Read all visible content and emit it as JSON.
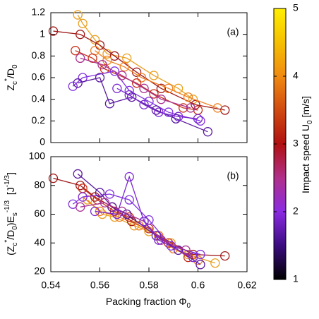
{
  "chart_data": [
    {
      "type": "line",
      "panel_label": "(a)",
      "ylabel": [
        "Z",
        "c",
        "*",
        "/D",
        "0"
      ],
      "xlim": [
        0.54,
        0.62
      ],
      "xticks": [
        0.54,
        0.56,
        0.58,
        0.6,
        0.62
      ],
      "xticklabels": false,
      "ylim": [
        0,
        1.2
      ],
      "yticks": [
        0,
        0.2,
        0.4,
        0.6,
        0.8,
        1,
        1.2
      ],
      "series": [
        {
          "color": "#e8a020",
          "x": [
            0.551,
            0.553,
            0.558,
            0.563,
            0.571,
            0.582,
            0.592,
            0.598
          ],
          "values": [
            1.18,
            1.1,
            0.95,
            0.82,
            0.78,
            0.62,
            0.5,
            0.4
          ]
        },
        {
          "color": "#a01818",
          "x": [
            0.541,
            0.552,
            0.56,
            0.566,
            0.575,
            0.585,
            0.599,
            0.611
          ],
          "values": [
            1.03,
            1.0,
            0.9,
            0.8,
            0.65,
            0.5,
            0.35,
            0.3
          ]
        },
        {
          "color": "#f08020",
          "x": [
            0.558,
            0.563,
            0.57,
            0.577,
            0.588,
            0.596,
            0.608
          ],
          "values": [
            0.85,
            0.76,
            0.7,
            0.6,
            0.5,
            0.42,
            0.32
          ]
        },
        {
          "color": "#c83018",
          "x": [
            0.55,
            0.557,
            0.562,
            0.575,
            0.582,
            0.594,
            0.6
          ],
          "values": [
            0.85,
            0.78,
            0.68,
            0.55,
            0.45,
            0.32,
            0.3
          ]
        },
        {
          "color": "#8030e0",
          "x": [
            0.549,
            0.553,
            0.566,
            0.572,
            0.58,
            0.588,
            0.601
          ],
          "values": [
            0.52,
            0.6,
            0.66,
            0.48,
            0.38,
            0.28,
            0.2
          ]
        },
        {
          "color": "#5a1aa0",
          "x": [
            0.551,
            0.56,
            0.564,
            0.573,
            0.583,
            0.591,
            0.604
          ],
          "values": [
            0.55,
            0.6,
            0.36,
            0.42,
            0.3,
            0.22,
            0.1
          ]
        },
        {
          "color": "#a83090",
          "x": [
            0.552,
            0.561,
            0.569,
            0.578,
            0.585,
            0.597
          ],
          "values": [
            0.78,
            0.72,
            0.62,
            0.5,
            0.4,
            0.32
          ]
        },
        {
          "color": "#7a28d0",
          "x": [
            0.567,
            0.572,
            0.578,
            0.584,
            0.592,
            0.6
          ],
          "values": [
            0.5,
            0.44,
            0.35,
            0.28,
            0.24,
            0.22
          ]
        }
      ]
    },
    {
      "type": "line",
      "panel_label": "(b)",
      "ylabel": [
        "(Z",
        "c",
        "*",
        "/D",
        "0",
        ")E",
        "s",
        "-1/3",
        "  [J",
        "-1/3",
        "]"
      ],
      "xlabel": [
        "Packing fraction Φ",
        "0"
      ],
      "xlim": [
        0.54,
        0.62
      ],
      "xticks": [
        0.54,
        0.56,
        0.58,
        0.6,
        0.62
      ],
      "xticklabels": true,
      "ylim": [
        20,
        100
      ],
      "yticks": [
        20,
        40,
        60,
        80,
        100
      ],
      "series": [
        {
          "color": "#e8a020",
          "x": [
            0.555,
            0.561,
            0.566,
            0.574,
            0.58,
            0.589,
            0.596,
            0.607
          ],
          "values": [
            70,
            60,
            58,
            52,
            48,
            40,
            32,
            26
          ]
        },
        {
          "color": "#a01818",
          "x": [
            0.541,
            0.552,
            0.558,
            0.565,
            0.573,
            0.584,
            0.598,
            0.611
          ],
          "values": [
            85,
            80,
            72,
            65,
            55,
            45,
            32,
            31
          ]
        },
        {
          "color": "#f08020",
          "x": [
            0.553,
            0.56,
            0.568,
            0.576,
            0.584,
            0.59,
            0.6
          ],
          "values": [
            72,
            62,
            58,
            52,
            45,
            36,
            28
          ]
        },
        {
          "color": "#c83018",
          "x": [
            0.553,
            0.559,
            0.566,
            0.572,
            0.58,
            0.588,
            0.596
          ],
          "values": [
            78,
            70,
            62,
            58,
            50,
            40,
            30
          ]
        },
        {
          "color": "#8030e0",
          "x": [
            0.549,
            0.553,
            0.564,
            0.572,
            0.58,
            0.589,
            0.601
          ],
          "values": [
            67,
            72,
            74,
            70,
            56,
            38,
            32
          ]
        },
        {
          "color": "#5a1aa0",
          "x": [
            0.551,
            0.56,
            0.565,
            0.571,
            0.583,
            0.592,
            0.601
          ],
          "values": [
            88,
            75,
            65,
            60,
            45,
            35,
            25
          ]
        },
        {
          "color": "#a83090",
          "x": [
            0.552,
            0.562,
            0.569,
            0.578,
            0.585,
            0.595
          ],
          "values": [
            65,
            68,
            62,
            55,
            42,
            35
          ]
        },
        {
          "color": "#7a28d0",
          "x": [
            0.558,
            0.567,
            0.572,
            0.578,
            0.584,
            0.598
          ],
          "values": [
            62,
            60,
            86,
            55,
            42,
            30
          ]
        }
      ]
    },
    {
      "type": "colorbar",
      "label": [
        "Impact speed U",
        "0",
        " [m/s]"
      ],
      "ylim": [
        1,
        5
      ],
      "yticks": [
        1,
        2,
        3,
        4,
        5
      ],
      "colors": [
        "#000000",
        "#3a0c80",
        "#8a2be2",
        "#b0308a",
        "#b01010",
        "#d04a10",
        "#f08a10",
        "#f5c000",
        "#ffee00"
      ]
    }
  ]
}
